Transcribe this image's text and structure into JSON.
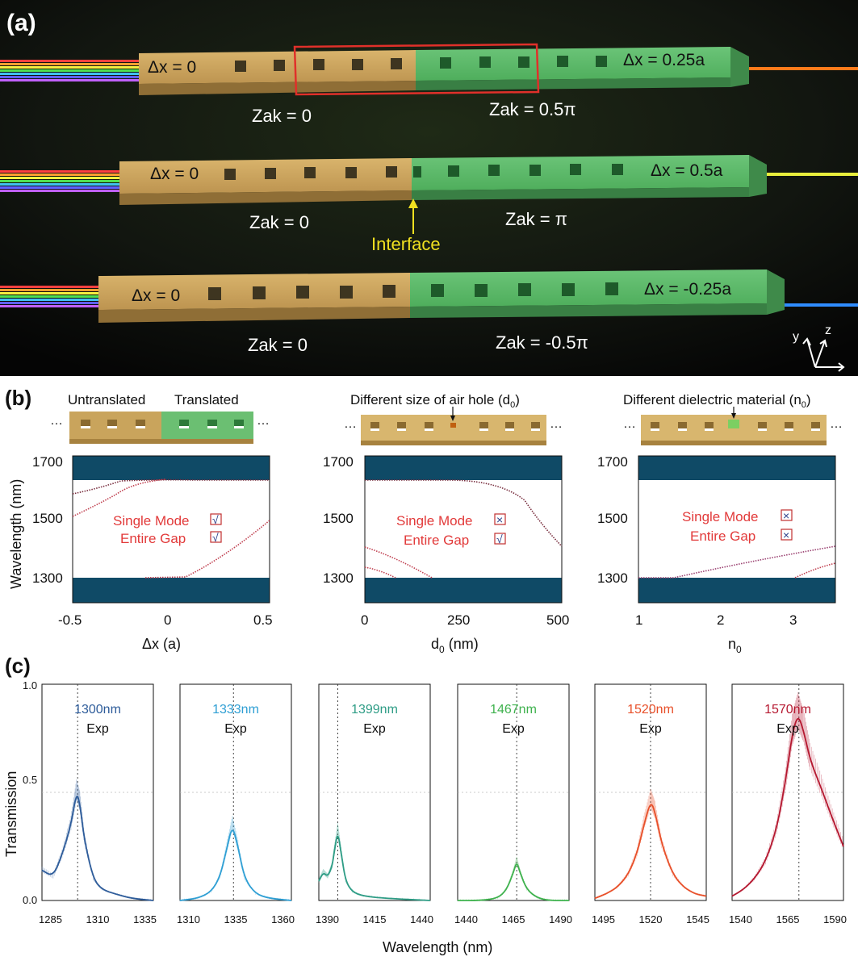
{
  "panel_labels": {
    "a": "(a)",
    "b": "(b)",
    "c": "(c)"
  },
  "panel_a": {
    "rows": [
      {
        "left_dx": "Δx = 0",
        "right_dx": "Δx = 0.25a",
        "left_zak": "Zak = 0",
        "right_zak": "Zak = 0.5π",
        "out_color": "#ff7a1a",
        "highlight_box": true
      },
      {
        "left_dx": "Δx = 0",
        "right_dx": "Δx = 0.5a",
        "left_zak": "Zak = 0",
        "right_zak": "Zak = π",
        "out_color": "#e8ee3c",
        "interface_label": "Interface"
      },
      {
        "left_dx": "Δx = 0",
        "right_dx": "Δx = -0.25a",
        "left_zak": "Zak = 0",
        "right_zak": "Zak = -0.5π",
        "out_color": "#2f8cff"
      }
    ],
    "axes_labels": {
      "y": "y",
      "z": "z"
    },
    "colors": {
      "gold": "#c9a45c",
      "green": "#5cb86a",
      "box": "#e0302a",
      "interface": "#f0e020"
    }
  },
  "panel_b": {
    "schematic_labels": {
      "untranslated": "Untranslated",
      "translated": "Translated",
      "air_hole": "Different size of air hole (d",
      "air_hole_sub": "0",
      "material": "Different dielectric material (n",
      "material_sub": "0"
    },
    "ylabel": "Wavelength (nm)",
    "yticks": [
      "1700",
      "1500",
      "1300"
    ],
    "plots": [
      {
        "xlabel": "Δx (a)",
        "xlabel_sub": "",
        "xticks": [
          "-0.5",
          "0",
          "0.5"
        ],
        "single_mode": "Single Mode",
        "entire_gap": "Entire Gap",
        "single_mark": "√",
        "gap_mark": "√"
      },
      {
        "xlabel": "d",
        "xlabel_sub": "0",
        "xlabel_tail": " (nm)",
        "xticks": [
          "0",
          "250",
          "500"
        ],
        "single_mode": "Single Mode",
        "entire_gap": "Entire Gap",
        "single_mark": "×",
        "gap_mark": "√"
      },
      {
        "xlabel": "n",
        "xlabel_sub": "0",
        "xticks": [
          "1",
          "2",
          "3"
        ],
        "single_mode": "Single Mode",
        "entire_gap": "Entire Gap",
        "single_mark": "×",
        "gap_mark": "×"
      }
    ],
    "colors": {
      "band": "#0f4a66",
      "text": "#e23a3a"
    }
  },
  "panel_c": {
    "ylabel": "Transmission",
    "xlabel": "Wavelength (nm)",
    "yticks": [
      "1.0",
      "0.5",
      "0.0"
    ],
    "sub_label": "Exp"
  },
  "chart_data": [
    {
      "type": "line",
      "title": "1300nm",
      "sub": "Exp",
      "color": "#2e5c9a",
      "xticks": [
        "1285",
        "1310",
        "1335"
      ],
      "x": [
        1285,
        1290,
        1294,
        1298,
        1300.5,
        1302,
        1304,
        1308,
        1312,
        1318,
        1325,
        1335
      ],
      "y": [
        0.14,
        0.11,
        0.21,
        0.35,
        0.5,
        0.45,
        0.28,
        0.1,
        0.05,
        0.03,
        0.01,
        0.0
      ],
      "xlim": [
        1285,
        1335
      ],
      "ylim": [
        0,
        1
      ],
      "peak": 1301
    },
    {
      "type": "line",
      "title": "1333nm",
      "sub": "Exp",
      "color": "#2f9fd4",
      "xticks": [
        "1310",
        "1335",
        "1360"
      ],
      "x": [
        1310,
        1318,
        1324,
        1328,
        1331,
        1333.5,
        1336,
        1339,
        1344,
        1350,
        1360
      ],
      "y": [
        0.0,
        0.01,
        0.04,
        0.11,
        0.24,
        0.35,
        0.25,
        0.1,
        0.03,
        0.01,
        0.0
      ],
      "xlim": [
        1310,
        1360
      ],
      "ylim": [
        0,
        1
      ],
      "peak": 1334
    },
    {
      "type": "line",
      "title": "1399nm",
      "sub": "Exp",
      "color": "#2f9d86",
      "xticks": [
        "1390",
        "1415",
        "1440"
      ],
      "x": [
        1390,
        1392,
        1394,
        1396,
        1397,
        1398.5,
        1400,
        1402,
        1405,
        1410,
        1420,
        1440
      ],
      "y": [
        0.09,
        0.13,
        0.11,
        0.16,
        0.23,
        0.32,
        0.22,
        0.09,
        0.04,
        0.02,
        0.01,
        0.0
      ],
      "xlim": [
        1390,
        1440
      ],
      "ylim": [
        0,
        1
      ],
      "peak": 1398.5
    },
    {
      "type": "line",
      "title": "1467nm",
      "sub": "Exp",
      "color": "#3fb24e",
      "xticks": [
        "1440",
        "1465",
        "1490"
      ],
      "x": [
        1440,
        1450,
        1458,
        1462,
        1465,
        1466.5,
        1468,
        1471,
        1476,
        1482,
        1490
      ],
      "y": [
        0.0,
        0.0,
        0.01,
        0.05,
        0.13,
        0.18,
        0.13,
        0.05,
        0.01,
        0.0,
        0.0
      ],
      "xlim": [
        1440,
        1490
      ],
      "ylim": [
        0,
        1
      ],
      "peak": 1466.5
    },
    {
      "type": "line",
      "title": "1520nm",
      "sub": "Exp",
      "color": "#e8502a",
      "xticks": [
        "1495",
        "1520",
        "1545"
      ],
      "x": [
        1495,
        1500,
        1505,
        1510,
        1514,
        1517,
        1520,
        1522,
        1525,
        1530,
        1535,
        1540,
        1545
      ],
      "y": [
        0.01,
        0.03,
        0.06,
        0.12,
        0.22,
        0.35,
        0.46,
        0.41,
        0.26,
        0.12,
        0.06,
        0.03,
        0.02
      ],
      "xlim": [
        1495,
        1545
      ],
      "ylim": [
        0,
        1
      ],
      "peak": 1520
    },
    {
      "type": "line",
      "title": "1570nm",
      "sub": "Exp",
      "color": "#b51830",
      "xticks": [
        "1540",
        "1565",
        "1590"
      ],
      "x": [
        1540,
        1545,
        1550,
        1555,
        1560,
        1564,
        1567,
        1569.5,
        1572,
        1575,
        1580,
        1585,
        1590
      ],
      "y": [
        0.02,
        0.05,
        0.1,
        0.18,
        0.33,
        0.55,
        0.77,
        0.86,
        0.79,
        0.65,
        0.52,
        0.38,
        0.25
      ],
      "xlim": [
        1540,
        1590
      ],
      "ylim": [
        0,
        1
      ],
      "peak": 1570
    }
  ]
}
